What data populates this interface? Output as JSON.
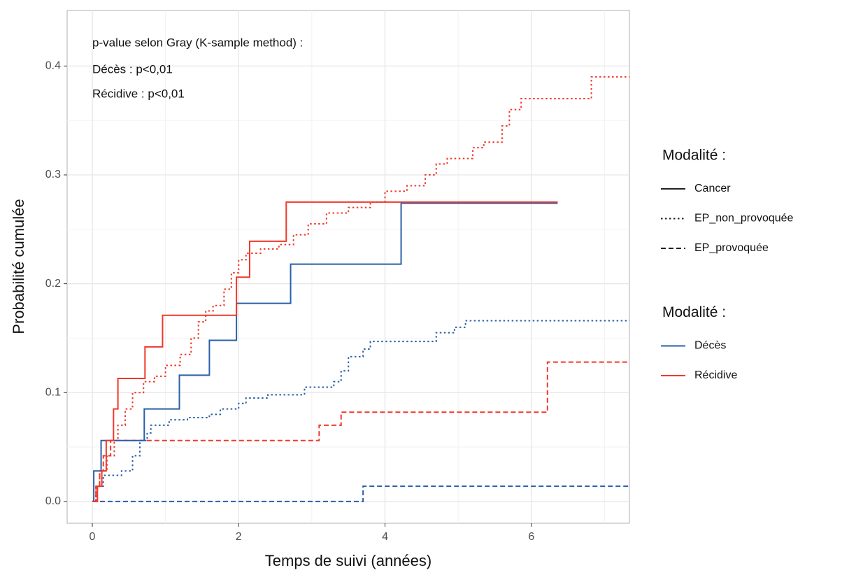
{
  "chart_data": {
    "type": "step",
    "annotations": [
      "p-value selon Gray (K-sample method) :",
      "Décès : p<0,01",
      "Récidive : p<0,01"
    ],
    "x_label": "Temps de suivi (années)",
    "y_label": "Probabilité cumulée",
    "xlim": [
      -0.344,
      7.34
    ],
    "ylim": [
      -0.02,
      0.451
    ],
    "xticks": [
      0,
      2,
      4,
      6
    ],
    "yticks": [
      {
        "value": 0,
        "label": "0.0"
      },
      {
        "value": 0.1,
        "label": "0.1"
      },
      {
        "value": 0.2,
        "label": "0.2"
      },
      {
        "value": 0.3,
        "label": "0.3"
      },
      {
        "value": 0.4,
        "label": "0.4"
      }
    ],
    "xminor": [
      1,
      3,
      5,
      7
    ],
    "yminor": [
      0.05,
      0.15,
      0.25,
      0.35
    ],
    "grid": true,
    "legends": [
      {
        "title": "Modalité :",
        "entries": [
          {
            "label": "Cancer",
            "dash": "solid"
          },
          {
            "label": "EP_non_provoquée",
            "dash": "dotted"
          },
          {
            "label": "EP_provoquée",
            "dash": "dashed"
          }
        ]
      },
      {
        "title": "Modalité :",
        "entries": [
          {
            "label": "Décès",
            "color": "#2a5fa8"
          },
          {
            "label": "Récidive",
            "color": "#f0382b"
          }
        ]
      }
    ],
    "series": [
      {
        "color": "#2a5fa8",
        "dash": "dashed",
        "x": [
          0,
          3.7,
          7.34
        ],
        "values": [
          0,
          0.014,
          0.014
        ]
      },
      {
        "color": "#f0382b",
        "dash": "dashed",
        "x": [
          0,
          0.05,
          0.1,
          0.15,
          0.25,
          3.1,
          3.4,
          6.22,
          7.34
        ],
        "values": [
          0,
          0.014,
          0.028,
          0.042,
          0.056,
          0.07,
          0.082,
          0.128,
          0.128
        ]
      },
      {
        "color": "#2a5fa8",
        "dash": "dotted",
        "x": [
          0,
          0.05,
          0.15,
          0.4,
          0.55,
          0.65,
          0.75,
          0.8,
          1.05,
          1.3,
          1.6,
          1.75,
          2.0,
          2.1,
          2.4,
          2.9,
          3.3,
          3.4,
          3.5,
          3.7,
          3.8,
          4.7,
          4.95,
          5.1,
          7.34
        ],
        "values": [
          0,
          0.014,
          0.024,
          0.028,
          0.042,
          0.056,
          0.063,
          0.07,
          0.075,
          0.077,
          0.08,
          0.085,
          0.09,
          0.095,
          0.098,
          0.105,
          0.11,
          0.12,
          0.133,
          0.14,
          0.147,
          0.155,
          0.16,
          0.166,
          0.166
        ]
      },
      {
        "color": "#f0382b",
        "dash": "dotted",
        "x": [
          0,
          0.05,
          0.1,
          0.2,
          0.3,
          0.35,
          0.45,
          0.55,
          0.7,
          0.85,
          1.0,
          1.2,
          1.35,
          1.45,
          1.55,
          1.65,
          1.8,
          1.9,
          2.0,
          2.1,
          2.3,
          2.55,
          2.75,
          2.95,
          3.2,
          3.5,
          3.8,
          4.0,
          4.3,
          4.55,
          4.7,
          4.85,
          5.2,
          5.35,
          5.6,
          5.7,
          5.86,
          6.82,
          7.34
        ],
        "values": [
          0,
          0.014,
          0.028,
          0.042,
          0.056,
          0.07,
          0.085,
          0.1,
          0.11,
          0.115,
          0.125,
          0.135,
          0.15,
          0.165,
          0.175,
          0.18,
          0.195,
          0.21,
          0.222,
          0.228,
          0.232,
          0.236,
          0.245,
          0.255,
          0.265,
          0.27,
          0.275,
          0.285,
          0.29,
          0.3,
          0.31,
          0.315,
          0.325,
          0.33,
          0.345,
          0.36,
          0.37,
          0.39,
          0.39
        ]
      },
      {
        "color": "#2a5fa8",
        "dash": "solid",
        "x": [
          0,
          0.02,
          0.12,
          0.71,
          1.19,
          1.6,
          1.97,
          2.71,
          4.22,
          6.36
        ],
        "values": [
          0,
          0.028,
          0.056,
          0.085,
          0.116,
          0.148,
          0.182,
          0.218,
          0.274,
          0.274
        ]
      },
      {
        "color": "#f0382b",
        "dash": "solid",
        "x": [
          0,
          0.07,
          0.13,
          0.19,
          0.29,
          0.35,
          0.72,
          0.96,
          1.97,
          2.15,
          2.65,
          6.36
        ],
        "values": [
          0,
          0.014,
          0.028,
          0.056,
          0.085,
          0.113,
          0.142,
          0.171,
          0.206,
          0.239,
          0.275,
          0.275
        ]
      }
    ]
  }
}
